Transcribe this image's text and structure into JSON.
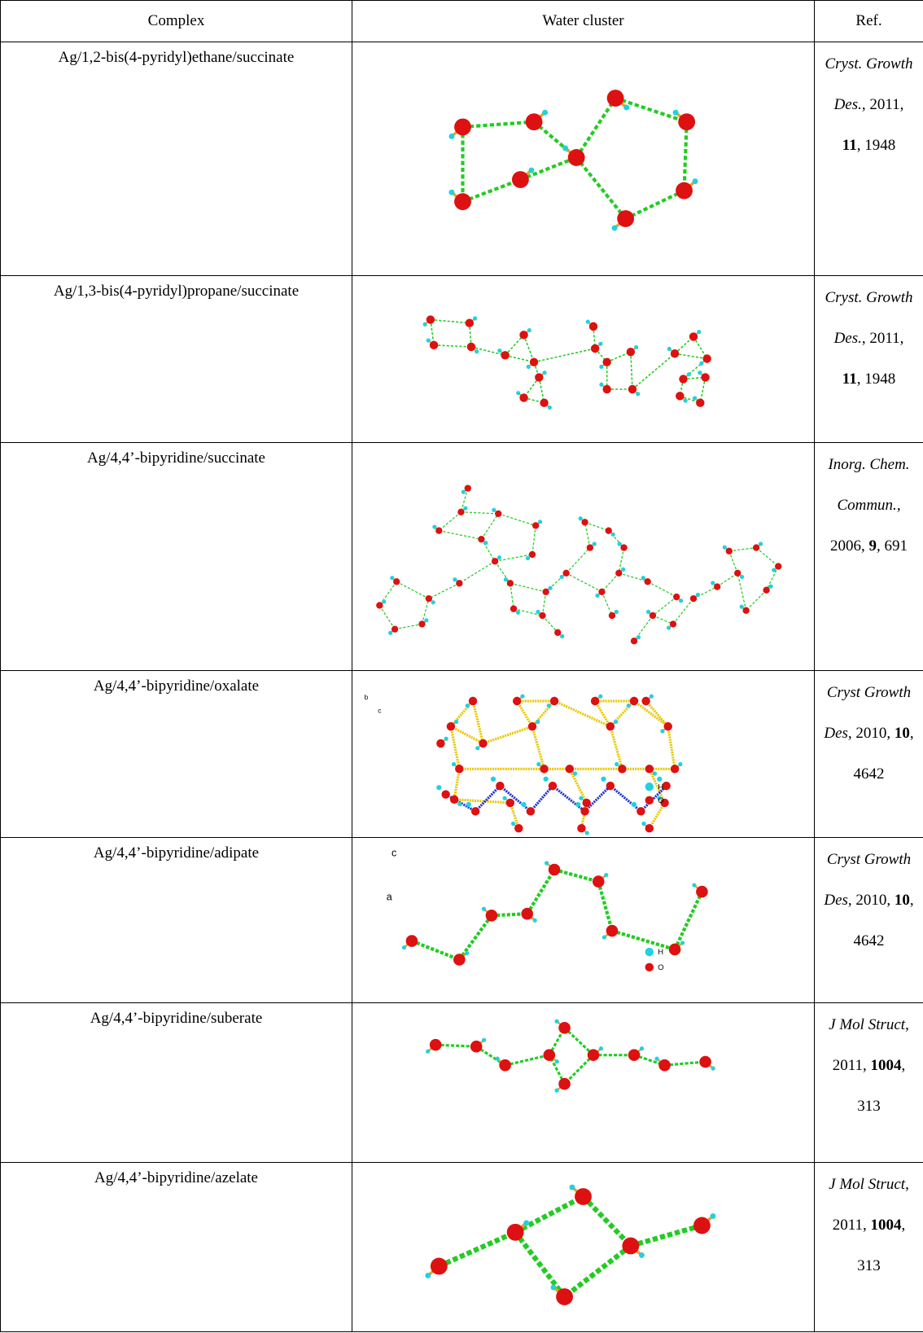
{
  "table": {
    "header": [
      "Complex",
      "Water cluster",
      "Ref."
    ],
    "rows": [
      {
        "complex": "Ag/1,2-bis(4-pyridyl)ethane/succinate",
        "ref": [
          {
            "text": "Cryst. Growth Des.",
            "style": "italic"
          },
          {
            "text": ", 2011, "
          },
          {
            "text": "11",
            "style": "bold"
          },
          {
            "text": ", 1948"
          }
        ]
      },
      {
        "complex": "Ag/1,3-bis(4-pyridyl)propane/succinate",
        "ref": [
          {
            "text": "Cryst. Growth Des.",
            "style": "italic"
          },
          {
            "text": ", 2011, "
          },
          {
            "text": "11",
            "style": "bold"
          },
          {
            "text": ", 1948"
          }
        ]
      },
      {
        "complex": "Ag/4,4’-bipyridine/succinate",
        "ref": [
          {
            "text": "Inorg. Chem. Commun.",
            "style": "italic"
          },
          {
            "text": ", 2006, "
          },
          {
            "text": "9",
            "style": "bold"
          },
          {
            "text": ", 691"
          }
        ]
      },
      {
        "complex": "Ag/4,4’-bipyridine/oxalate",
        "figure_labels": [
          "b",
          "c",
          "H",
          "O"
        ],
        "ref": [
          {
            "text": "Cryst Growth Des",
            "style": "italic"
          },
          {
            "text": ", 2010, "
          },
          {
            "text": "10",
            "style": "bold"
          },
          {
            "text": ", 4642"
          }
        ]
      },
      {
        "complex": "Ag/4,4’-bipyridine/adipate",
        "figure_labels": [
          "c",
          "a",
          "H",
          "O"
        ],
        "ref": [
          {
            "text": "Cryst Growth Des",
            "style": "italic"
          },
          {
            "text": ", 2010, "
          },
          {
            "text": "10",
            "style": "bold"
          },
          {
            "text": ", 4642"
          }
        ]
      },
      {
        "complex": "Ag/4,4’-bipyridine/suberate",
        "ref": [
          {
            "text": "J Mol Struct",
            "style": "italic"
          },
          {
            "text": ", 2011, "
          },
          {
            "text": "1004",
            "style": "bold"
          },
          {
            "text": ", 313"
          }
        ]
      },
      {
        "complex": "Ag/4,4’-bipyridine/azelate",
        "ref": [
          {
            "text": "J Mol Struct",
            "style": "italic"
          },
          {
            "text": ", 2011, "
          },
          {
            "text": "1004",
            "style": "bold"
          },
          {
            "text": ", 313"
          }
        ]
      }
    ]
  }
}
